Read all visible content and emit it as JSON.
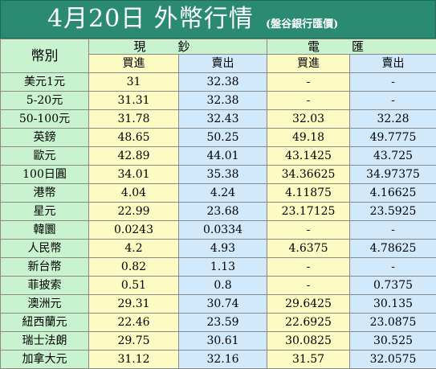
{
  "title": {
    "main": "4月20日  外幣行情",
    "sub": "(盤谷銀行匯價)"
  },
  "header": {
    "currency_label": "幣別",
    "cash_label": "現鈔",
    "tt_label": "電匯",
    "buy_label": "買進",
    "sell_label": "賣出"
  },
  "rows": [
    {
      "name": "美元1元",
      "cash_buy": "31",
      "cash_sell": "32.38",
      "tt_buy": "-",
      "tt_sell": "-"
    },
    {
      "name": "5-20元",
      "cash_buy": "31.31",
      "cash_sell": "32.38",
      "tt_buy": "-",
      "tt_sell": "-"
    },
    {
      "name": "50-100元",
      "cash_buy": "31.78",
      "cash_sell": "32.43",
      "tt_buy": "32.03",
      "tt_sell": "32.28"
    },
    {
      "name": "英鎊",
      "cash_buy": "48.65",
      "cash_sell": "50.25",
      "tt_buy": "49.18",
      "tt_sell": "49.7775"
    },
    {
      "name": "歐元",
      "cash_buy": "42.89",
      "cash_sell": "44.01",
      "tt_buy": "43.1425",
      "tt_sell": "43.725"
    },
    {
      "name": "100日圓",
      "cash_buy": "34.01",
      "cash_sell": "35.38",
      "tt_buy": "34.36625",
      "tt_sell": "34.97375"
    },
    {
      "name": "港幣",
      "cash_buy": "4.04",
      "cash_sell": "4.24",
      "tt_buy": "4.11875",
      "tt_sell": "4.16625"
    },
    {
      "name": "星元",
      "cash_buy": "22.99",
      "cash_sell": "23.68",
      "tt_buy": "23.17125",
      "tt_sell": "23.5925"
    },
    {
      "name": "韓圜",
      "cash_buy": "0.0243",
      "cash_sell": "0.0334",
      "tt_buy": "-",
      "tt_sell": "-"
    },
    {
      "name": "人民幣",
      "cash_buy": "4.2",
      "cash_sell": "4.93",
      "tt_buy": "4.6375",
      "tt_sell": "4.78625"
    },
    {
      "name": "新台幣",
      "cash_buy": "0.82",
      "cash_sell": "1.13",
      "tt_buy": "-",
      "tt_sell": "-"
    },
    {
      "name": "菲披索",
      "cash_buy": "0.51",
      "cash_sell": "0.8",
      "tt_buy": "-",
      "tt_sell": "0.7375"
    },
    {
      "name": "澳洲元",
      "cash_buy": "29.31",
      "cash_sell": "30.74",
      "tt_buy": "29.6425",
      "tt_sell": "30.135"
    },
    {
      "name": "紐西蘭元",
      "cash_buy": "22.46",
      "cash_sell": "23.59",
      "tt_buy": "22.6925",
      "tt_sell": "23.0875"
    },
    {
      "name": "瑞士法朗",
      "cash_buy": "29.75",
      "cash_sell": "30.61",
      "tt_buy": "30.0825",
      "tt_sell": "30.525"
    },
    {
      "name": "加拿大元",
      "cash_buy": "31.12",
      "cash_sell": "32.16",
      "tt_buy": "31.57",
      "tt_sell": "32.0575"
    }
  ],
  "colors": {
    "title_bg": "#2a8a72",
    "label_bg": "#c9f2cf",
    "cash_bg": "#fdfbc4",
    "tt_bg": "#d2e8fb"
  }
}
